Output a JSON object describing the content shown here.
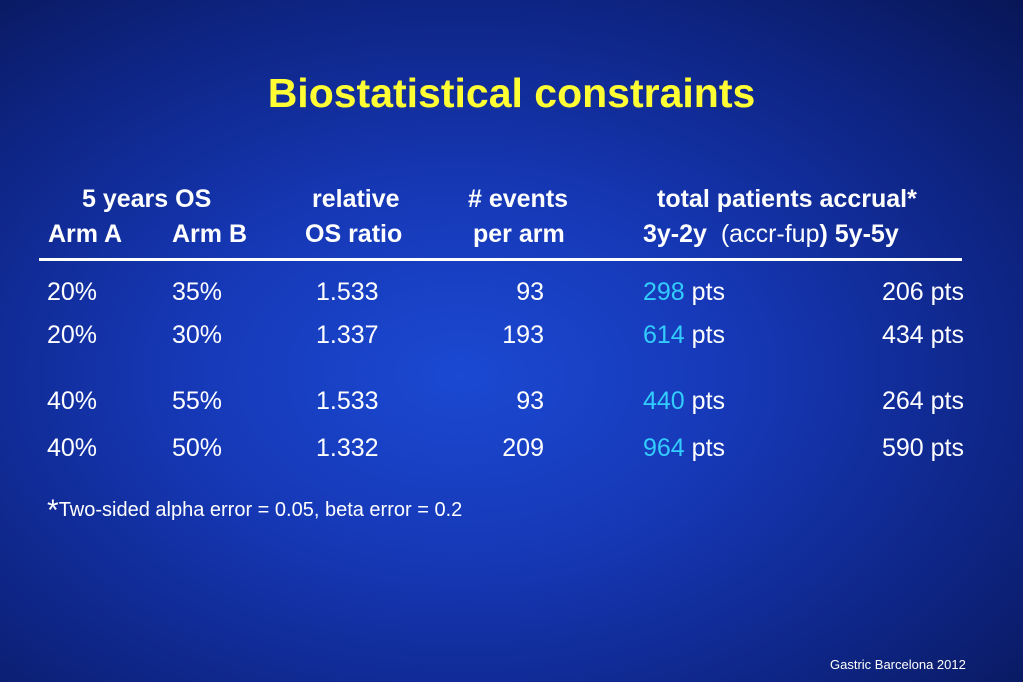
{
  "title": "Biostatistical constraints",
  "header": {
    "os_group": "5 years OS",
    "arm_a": "Arm A",
    "arm_b": "Arm B",
    "rel_top": "relative",
    "rel_bottom": "OS ratio",
    "events_top": "# events",
    "events_bottom": "per arm",
    "accrual_top": "total patients accrual*",
    "accrual_left": "3y-2y",
    "accrual_mid_open": "(accr-fup",
    "accrual_mid_close": ")",
    "accrual_right": "5y-5y"
  },
  "rows": [
    {
      "arm_a": "20%",
      "arm_b": "35%",
      "ratio": "1.533",
      "events": "93",
      "accr_a": "298",
      "accr_a_unit": "pts",
      "accr_b": "206 pts"
    },
    {
      "arm_a": "20%",
      "arm_b": "30%",
      "ratio": "1.337",
      "events": "193",
      "accr_a": "614",
      "accr_a_unit": "pts",
      "accr_b": "434 pts"
    },
    {
      "arm_a": "40%",
      "arm_b": "55%",
      "ratio": "1.533",
      "events": "93",
      "accr_a": "440",
      "accr_a_unit": "pts",
      "accr_b": "264 pts"
    },
    {
      "arm_a": "40%",
      "arm_b": "50%",
      "ratio": "1.332",
      "events": "209",
      "accr_a": "964",
      "accr_a_unit": "pts",
      "accr_b": "590 pts"
    }
  ],
  "footnote": {
    "star": "*",
    "text": "Two-sided alpha error = 0.05, beta error = 0.2"
  },
  "credit": "Gastric Barcelona 2012",
  "colors": {
    "title": "#ffff33",
    "highlight": "#33ccff",
    "background": "#1638b6"
  }
}
